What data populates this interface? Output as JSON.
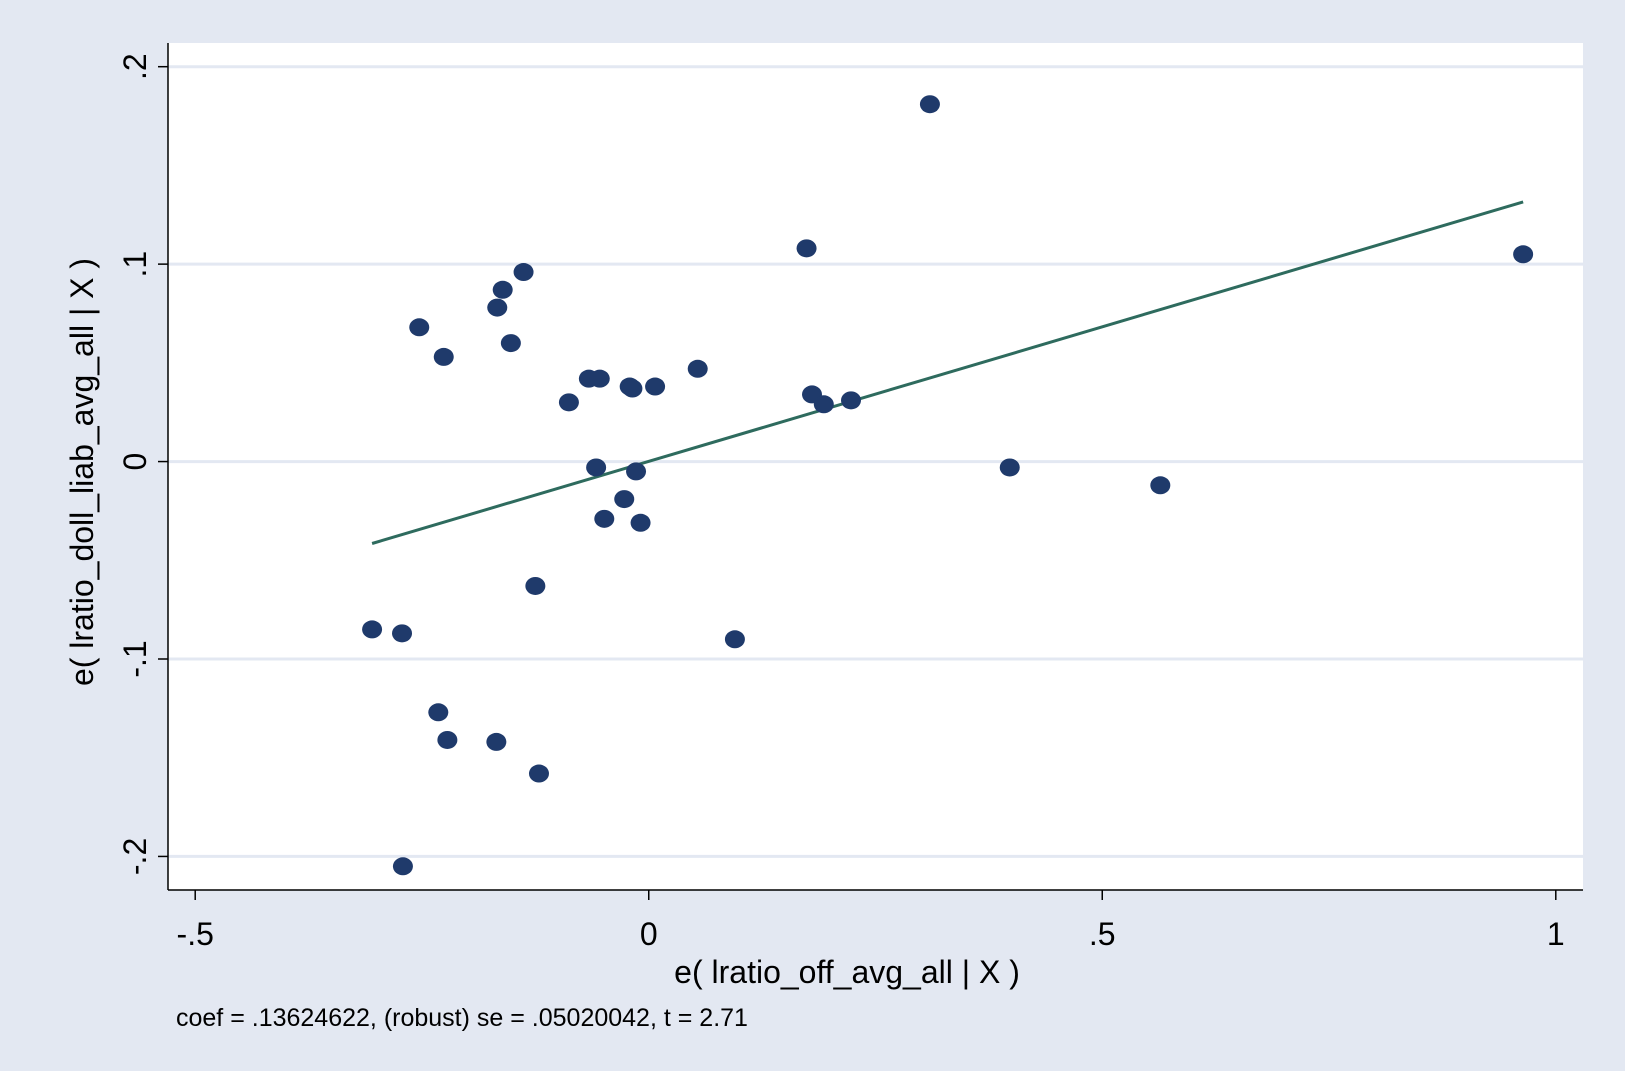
{
  "chart_data": {
    "type": "scatter",
    "title": "",
    "xlabel": "e( lratio_off_avg_all | X )",
    "ylabel": "e( lratio_doll_liab_avg_all | X )",
    "note": "coef = .13624622, (robust) se = .05020042, t = 2.71",
    "xlim": [
      -0.53,
      1.03
    ],
    "ylim": [
      -0.217,
      0.212
    ],
    "xticks": [
      -0.5,
      0,
      0.5,
      1
    ],
    "xtick_labels": [
      "-.5",
      "0",
      ".5",
      "1"
    ],
    "yticks": [
      -0.2,
      -0.1,
      0,
      0.1,
      0.2
    ],
    "ytick_labels": [
      "-.2",
      "-.1",
      "0",
      ".1",
      ".2"
    ],
    "grid": "horizontal",
    "legend": "none",
    "colors": {
      "outer_background": "#e3e8f2",
      "plot_background": "#ffffff",
      "gridline": "#e3e8f2",
      "marker": "#1f3a6b",
      "fit_line": "#2e6b5e",
      "axis": "#000000"
    },
    "series": [
      {
        "type": "scatter",
        "points": [
          [
            -0.305,
            -0.085
          ],
          [
            -0.272,
            -0.087
          ],
          [
            -0.271,
            -0.205
          ],
          [
            -0.253,
            0.068
          ],
          [
            -0.232,
            -0.127
          ],
          [
            -0.226,
            0.053
          ],
          [
            -0.222,
            -0.141
          ],
          [
            -0.167,
            0.078
          ],
          [
            -0.168,
            -0.142
          ],
          [
            -0.161,
            0.087
          ],
          [
            -0.152,
            0.06
          ],
          [
            -0.138,
            0.096
          ],
          [
            -0.125,
            -0.063
          ],
          [
            -0.121,
            -0.158
          ],
          [
            -0.088,
            0.03
          ],
          [
            -0.066,
            0.042
          ],
          [
            -0.058,
            -0.003
          ],
          [
            -0.054,
            0.042
          ],
          [
            -0.049,
            -0.029
          ],
          [
            -0.027,
            -0.019
          ],
          [
            -0.021,
            0.038
          ],
          [
            -0.018,
            0.037
          ],
          [
            -0.014,
            -0.005
          ],
          [
            -0.009,
            -0.031
          ],
          [
            0.007,
            0.038
          ],
          [
            0.054,
            0.047
          ],
          [
            0.095,
            -0.09
          ],
          [
            0.174,
            0.108
          ],
          [
            0.18,
            0.034
          ],
          [
            0.193,
            0.029
          ],
          [
            0.223,
            0.031
          ],
          [
            0.31,
            0.181
          ],
          [
            0.398,
            -0.003
          ],
          [
            0.564,
            -0.012
          ],
          [
            0.964,
            0.105
          ]
        ]
      },
      {
        "type": "line",
        "points": [
          [
            -0.305,
            -0.0415
          ],
          [
            0.964,
            0.1315
          ]
        ]
      }
    ]
  }
}
